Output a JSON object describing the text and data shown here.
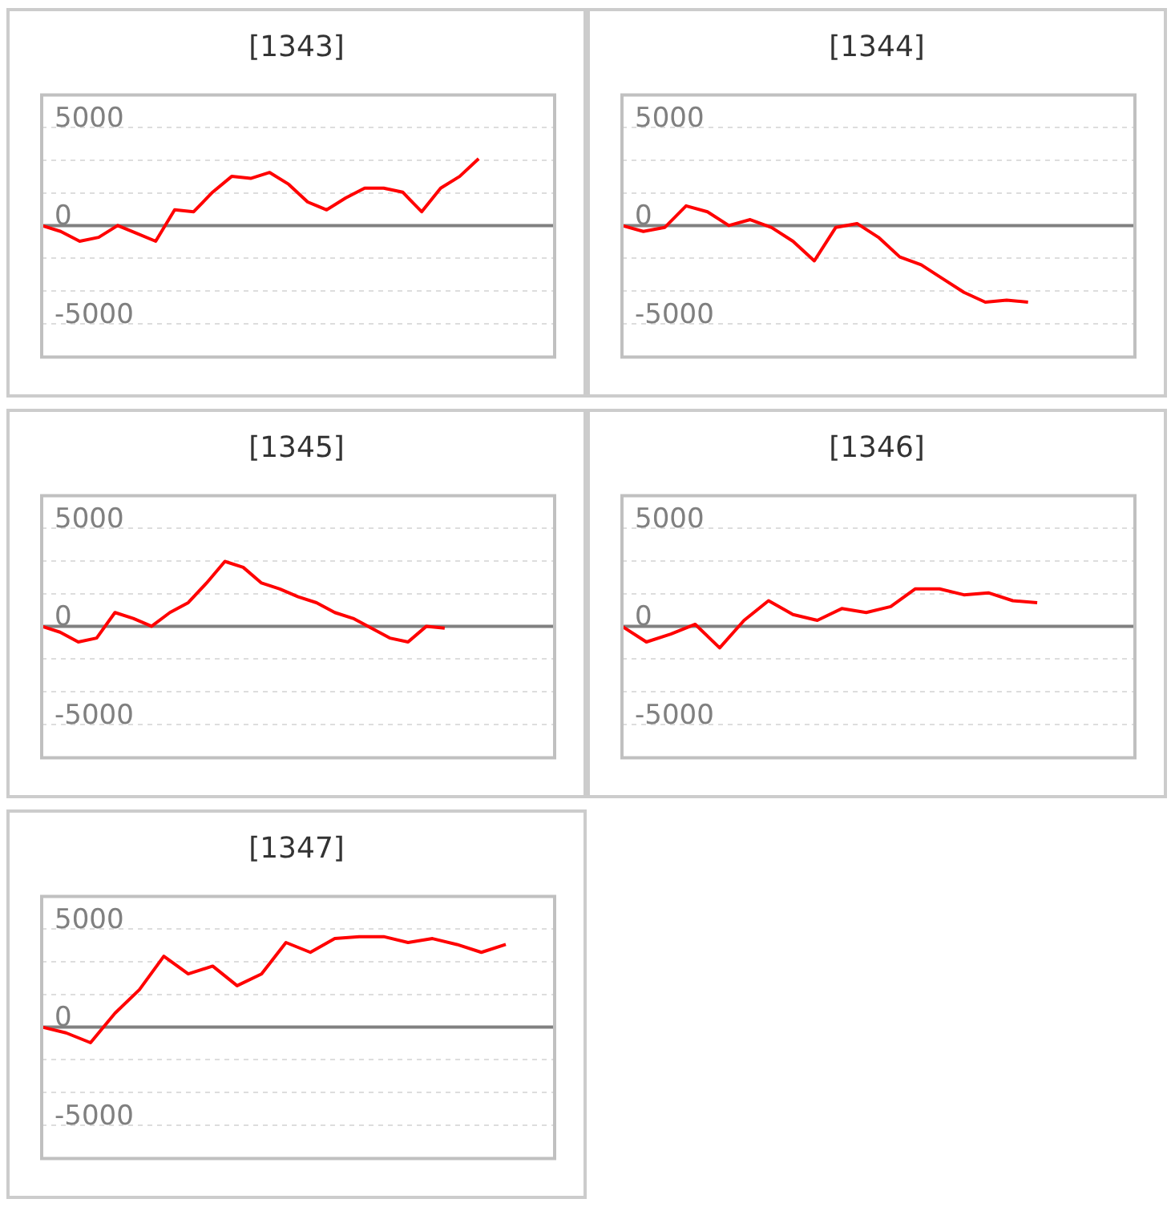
{
  "chart_data": [
    {
      "type": "line",
      "title": "[1343]",
      "categories": [
        null,
        null,
        null,
        null,
        null,
        null,
        null,
        null,
        null,
        null,
        null,
        null,
        null,
        null,
        null,
        null,
        null,
        null,
        null,
        null,
        null,
        null,
        null,
        null,
        null,
        null,
        null,
        null
      ],
      "ylim": [
        -6700,
        6650
      ],
      "yticks": [
        -5000,
        {
          "value": -3333,
          "label": null
        },
        {
          "value": -1667,
          "label": null
        },
        0,
        {
          "value": 1667,
          "label": null
        },
        {
          "value": 3333,
          "label": null
        },
        5000
      ],
      "tick_labels": "y",
      "grid": "y",
      "legend": false,
      "marker": "none",
      "line_style": "solid",
      "ref_lines": [
        {
          "axis": "y",
          "value": 0,
          "color": "#808080"
        }
      ],
      "series": [
        {
          "color": "#ff0000",
          "values": [
            0,
            -300,
            -800,
            -600,
            0,
            -400,
            -800,
            800,
            700,
            1700,
            2500,
            2400,
            2700,
            2100,
            1200,
            800,
            1400,
            1900,
            1900,
            1700,
            700,
            1900,
            2500,
            3400,
            null,
            null,
            null,
            null
          ]
        }
      ]
    },
    {
      "type": "line",
      "title": "[1344]",
      "categories": [
        null,
        null,
        null,
        null,
        null,
        null,
        null,
        null,
        null,
        null,
        null,
        null,
        null,
        null,
        null,
        null,
        null,
        null,
        null,
        null,
        null,
        null,
        null,
        null,
        null
      ],
      "ylim": [
        -6700,
        6650
      ],
      "yticks": [
        -5000,
        {
          "value": -3333,
          "label": null
        },
        {
          "value": -1667,
          "label": null
        },
        0,
        {
          "value": 1667,
          "label": null
        },
        {
          "value": 3333,
          "label": null
        },
        5000
      ],
      "tick_labels": "y",
      "grid": "y",
      "legend": false,
      "marker": "none",
      "line_style": "solid",
      "ref_lines": [
        {
          "axis": "y",
          "value": 0,
          "color": "#808080"
        }
      ],
      "series": [
        {
          "color": "#ff0000",
          "values": [
            0,
            -300,
            -100,
            1000,
            700,
            0,
            300,
            -100,
            -800,
            -1800,
            -100,
            100,
            -600,
            -1600,
            -2000,
            -2700,
            -3400,
            -3900,
            -3800,
            -3900,
            null,
            null,
            null,
            null,
            null
          ]
        }
      ]
    },
    {
      "type": "line",
      "title": "[1345]",
      "categories": [
        null,
        null,
        null,
        null,
        null,
        null,
        null,
        null,
        null,
        null,
        null,
        null,
        null,
        null,
        null,
        null,
        null,
        null,
        null,
        null,
        null,
        null,
        null,
        null,
        null,
        null,
        null,
        null,
        null
      ],
      "ylim": [
        -6700,
        6650
      ],
      "yticks": [
        -5000,
        {
          "value": -3333,
          "label": null
        },
        {
          "value": -1667,
          "label": null
        },
        0,
        {
          "value": 1667,
          "label": null
        },
        {
          "value": 3333,
          "label": null
        },
        5000
      ],
      "tick_labels": "y",
      "grid": "y",
      "legend": false,
      "marker": "none",
      "line_style": "solid",
      "ref_lines": [
        {
          "axis": "y",
          "value": 0,
          "color": "#808080"
        }
      ],
      "series": [
        {
          "color": "#ff0000",
          "values": [
            0,
            -300,
            -800,
            -600,
            700,
            400,
            0,
            700,
            1200,
            2200,
            3300,
            3000,
            2200,
            1900,
            1500,
            1200,
            700,
            400,
            -100,
            -600,
            -800,
            0,
            -100,
            null,
            null,
            null,
            null,
            null,
            null
          ]
        }
      ]
    },
    {
      "type": "line",
      "title": "[1346]",
      "categories": [
        null,
        null,
        null,
        null,
        null,
        null,
        null,
        null,
        null,
        null,
        null,
        null,
        null,
        null,
        null,
        null,
        null,
        null,
        null,
        null,
        null,
        null
      ],
      "ylim": [
        -6700,
        6650
      ],
      "yticks": [
        -5000,
        {
          "value": -3333,
          "label": null
        },
        {
          "value": -1667,
          "label": null
        },
        0,
        {
          "value": 1667,
          "label": null
        },
        {
          "value": 3333,
          "label": null
        },
        5000
      ],
      "tick_labels": "y",
      "grid": "y",
      "legend": false,
      "marker": "none",
      "line_style": "solid",
      "ref_lines": [
        {
          "axis": "y",
          "value": 0,
          "color": "#808080"
        }
      ],
      "series": [
        {
          "color": "#ff0000",
          "values": [
            0,
            -800,
            -400,
            100,
            -1100,
            300,
            1300,
            600,
            300,
            900,
            700,
            1000,
            1900,
            1900,
            1600,
            1700,
            1300,
            1200,
            null,
            null,
            null,
            null
          ]
        }
      ]
    },
    {
      "type": "line",
      "title": "[1347]",
      "categories": [
        null,
        null,
        null,
        null,
        null,
        null,
        null,
        null,
        null,
        null,
        null,
        null,
        null,
        null,
        null,
        null,
        null,
        null,
        null,
        null,
        null,
        null
      ],
      "ylim": [
        -6700,
        6650
      ],
      "yticks": [
        -5000,
        {
          "value": -3333,
          "label": null
        },
        {
          "value": -1667,
          "label": null
        },
        0,
        {
          "value": 1667,
          "label": null
        },
        {
          "value": 3333,
          "label": null
        },
        5000
      ],
      "tick_labels": "y",
      "grid": "y",
      "legend": false,
      "marker": "none",
      "line_style": "solid",
      "ref_lines": [
        {
          "axis": "y",
          "value": 0,
          "color": "#808080"
        }
      ],
      "series": [
        {
          "color": "#ff0000",
          "values": [
            0,
            -300,
            -800,
            700,
            1900,
            3600,
            2700,
            3100,
            2100,
            2700,
            4300,
            3800,
            4500,
            4600,
            4600,
            4300,
            4500,
            4200,
            3800,
            4200,
            null,
            null
          ]
        }
      ]
    }
  ]
}
